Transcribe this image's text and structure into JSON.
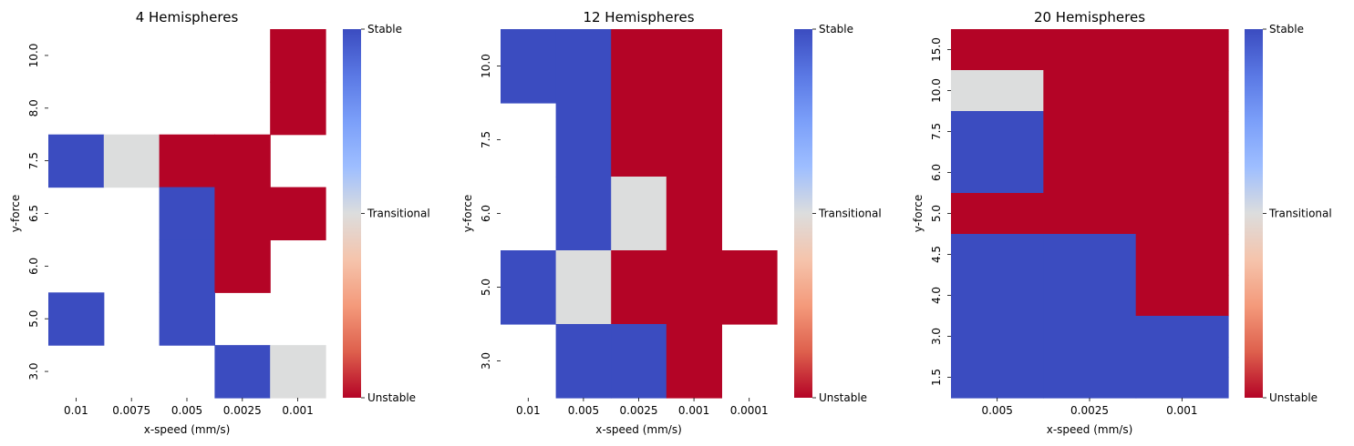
{
  "colors": {
    "stable": "#3b4cc0",
    "transitional": "#dcdddd",
    "unstable": "#b40426"
  },
  "colorbar": {
    "ticks": [
      "Stable",
      "Transitional",
      "Unstable"
    ],
    "colormap": "coolwarm"
  },
  "chart_data": [
    {
      "type": "heatmap",
      "title": "4 Hemispheres",
      "xlabel": "x-speed (mm/s)",
      "ylabel": "y-force",
      "x_categories": [
        "0.01",
        "0.0075",
        "0.005",
        "0.0025",
        "0.001"
      ],
      "y_categories": [
        "10.0",
        "8.0",
        "7.5",
        "6.5",
        "6.0",
        "5.0",
        "3.0"
      ],
      "values": [
        [
          null,
          null,
          null,
          null,
          "Unstable"
        ],
        [
          null,
          null,
          null,
          null,
          "Unstable"
        ],
        [
          "Stable",
          "Transitional",
          "Unstable",
          "Unstable",
          null
        ],
        [
          null,
          null,
          "Stable",
          "Unstable",
          "Unstable"
        ],
        [
          null,
          null,
          "Stable",
          "Unstable",
          null
        ],
        [
          "Stable",
          null,
          "Stable",
          null,
          null
        ],
        [
          null,
          null,
          null,
          "Stable",
          "Transitional"
        ]
      ]
    },
    {
      "type": "heatmap",
      "title": "12 Hemispheres",
      "xlabel": "x-speed (mm/s)",
      "ylabel": "y-force",
      "x_categories": [
        "0.01",
        "0.005",
        "0.0025",
        "0.001",
        "0.0001"
      ],
      "y_categories": [
        "10.0",
        "7.5",
        "6.0",
        "5.0",
        "3.0"
      ],
      "values": [
        [
          "Stable",
          "Stable",
          "Unstable",
          "Unstable",
          null
        ],
        [
          null,
          "Stable",
          "Unstable",
          "Unstable",
          null
        ],
        [
          null,
          "Stable",
          "Transitional",
          "Unstable",
          null
        ],
        [
          "Stable",
          "Transitional",
          "Unstable",
          "Unstable",
          "Unstable"
        ],
        [
          null,
          "Stable",
          "Stable",
          "Unstable",
          null
        ]
      ]
    },
    {
      "type": "heatmap",
      "title": "20 Hemispheres",
      "xlabel": "x-speed (mm/s)",
      "ylabel": "y-force",
      "x_categories": [
        "0.005",
        "0.0025",
        "0.001"
      ],
      "y_categories": [
        "15.0",
        "10.0",
        "7.5",
        "6.0",
        "5.0",
        "4.5",
        "4.0",
        "3.0",
        "1.5"
      ],
      "values": [
        [
          "Unstable",
          "Unstable",
          "Unstable"
        ],
        [
          "Transitional",
          "Unstable",
          "Unstable"
        ],
        [
          "Stable",
          "Unstable",
          "Unstable"
        ],
        [
          "Stable",
          "Unstable",
          "Unstable"
        ],
        [
          "Unstable",
          "Unstable",
          "Unstable"
        ],
        [
          "Stable",
          "Stable",
          "Unstable"
        ],
        [
          "Stable",
          "Stable",
          "Unstable"
        ],
        [
          "Stable",
          "Stable",
          "Stable"
        ],
        [
          "Stable",
          "Stable",
          "Stable"
        ]
      ]
    }
  ]
}
